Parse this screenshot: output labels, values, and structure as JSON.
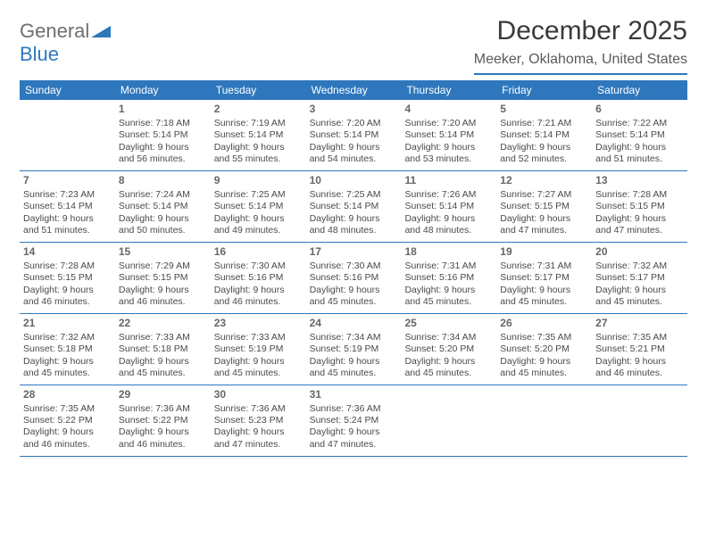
{
  "brand": {
    "part1": "General",
    "part2": "Blue"
  },
  "title": "December 2025",
  "location": "Meeker, Oklahoma, United States",
  "colors": {
    "accent": "#2e77bd",
    "text": "#3a3a3a",
    "bg": "#ffffff",
    "weekday_text": "#ffffff",
    "muted": "#6f6f6f"
  },
  "weekdays": [
    "Sunday",
    "Monday",
    "Tuesday",
    "Wednesday",
    "Thursday",
    "Friday",
    "Saturday"
  ],
  "weeks": [
    [
      null,
      {
        "n": "1",
        "sr": "7:18 AM",
        "ss": "5:14 PM",
        "dl": "9 hours and 56 minutes."
      },
      {
        "n": "2",
        "sr": "7:19 AM",
        "ss": "5:14 PM",
        "dl": "9 hours and 55 minutes."
      },
      {
        "n": "3",
        "sr": "7:20 AM",
        "ss": "5:14 PM",
        "dl": "9 hours and 54 minutes."
      },
      {
        "n": "4",
        "sr": "7:20 AM",
        "ss": "5:14 PM",
        "dl": "9 hours and 53 minutes."
      },
      {
        "n": "5",
        "sr": "7:21 AM",
        "ss": "5:14 PM",
        "dl": "9 hours and 52 minutes."
      },
      {
        "n": "6",
        "sr": "7:22 AM",
        "ss": "5:14 PM",
        "dl": "9 hours and 51 minutes."
      }
    ],
    [
      {
        "n": "7",
        "sr": "7:23 AM",
        "ss": "5:14 PM",
        "dl": "9 hours and 51 minutes."
      },
      {
        "n": "8",
        "sr": "7:24 AM",
        "ss": "5:14 PM",
        "dl": "9 hours and 50 minutes."
      },
      {
        "n": "9",
        "sr": "7:25 AM",
        "ss": "5:14 PM",
        "dl": "9 hours and 49 minutes."
      },
      {
        "n": "10",
        "sr": "7:25 AM",
        "ss": "5:14 PM",
        "dl": "9 hours and 48 minutes."
      },
      {
        "n": "11",
        "sr": "7:26 AM",
        "ss": "5:14 PM",
        "dl": "9 hours and 48 minutes."
      },
      {
        "n": "12",
        "sr": "7:27 AM",
        "ss": "5:15 PM",
        "dl": "9 hours and 47 minutes."
      },
      {
        "n": "13",
        "sr": "7:28 AM",
        "ss": "5:15 PM",
        "dl": "9 hours and 47 minutes."
      }
    ],
    [
      {
        "n": "14",
        "sr": "7:28 AM",
        "ss": "5:15 PM",
        "dl": "9 hours and 46 minutes."
      },
      {
        "n": "15",
        "sr": "7:29 AM",
        "ss": "5:15 PM",
        "dl": "9 hours and 46 minutes."
      },
      {
        "n": "16",
        "sr": "7:30 AM",
        "ss": "5:16 PM",
        "dl": "9 hours and 46 minutes."
      },
      {
        "n": "17",
        "sr": "7:30 AM",
        "ss": "5:16 PM",
        "dl": "9 hours and 45 minutes."
      },
      {
        "n": "18",
        "sr": "7:31 AM",
        "ss": "5:16 PM",
        "dl": "9 hours and 45 minutes."
      },
      {
        "n": "19",
        "sr": "7:31 AM",
        "ss": "5:17 PM",
        "dl": "9 hours and 45 minutes."
      },
      {
        "n": "20",
        "sr": "7:32 AM",
        "ss": "5:17 PM",
        "dl": "9 hours and 45 minutes."
      }
    ],
    [
      {
        "n": "21",
        "sr": "7:32 AM",
        "ss": "5:18 PM",
        "dl": "9 hours and 45 minutes."
      },
      {
        "n": "22",
        "sr": "7:33 AM",
        "ss": "5:18 PM",
        "dl": "9 hours and 45 minutes."
      },
      {
        "n": "23",
        "sr": "7:33 AM",
        "ss": "5:19 PM",
        "dl": "9 hours and 45 minutes."
      },
      {
        "n": "24",
        "sr": "7:34 AM",
        "ss": "5:19 PM",
        "dl": "9 hours and 45 minutes."
      },
      {
        "n": "25",
        "sr": "7:34 AM",
        "ss": "5:20 PM",
        "dl": "9 hours and 45 minutes."
      },
      {
        "n": "26",
        "sr": "7:35 AM",
        "ss": "5:20 PM",
        "dl": "9 hours and 45 minutes."
      },
      {
        "n": "27",
        "sr": "7:35 AM",
        "ss": "5:21 PM",
        "dl": "9 hours and 46 minutes."
      }
    ],
    [
      {
        "n": "28",
        "sr": "7:35 AM",
        "ss": "5:22 PM",
        "dl": "9 hours and 46 minutes."
      },
      {
        "n": "29",
        "sr": "7:36 AM",
        "ss": "5:22 PM",
        "dl": "9 hours and 46 minutes."
      },
      {
        "n": "30",
        "sr": "7:36 AM",
        "ss": "5:23 PM",
        "dl": "9 hours and 47 minutes."
      },
      {
        "n": "31",
        "sr": "7:36 AM",
        "ss": "5:24 PM",
        "dl": "9 hours and 47 minutes."
      },
      null,
      null,
      null
    ]
  ],
  "labels": {
    "sunrise": "Sunrise: ",
    "sunset": "Sunset: ",
    "daylight": "Daylight: "
  }
}
